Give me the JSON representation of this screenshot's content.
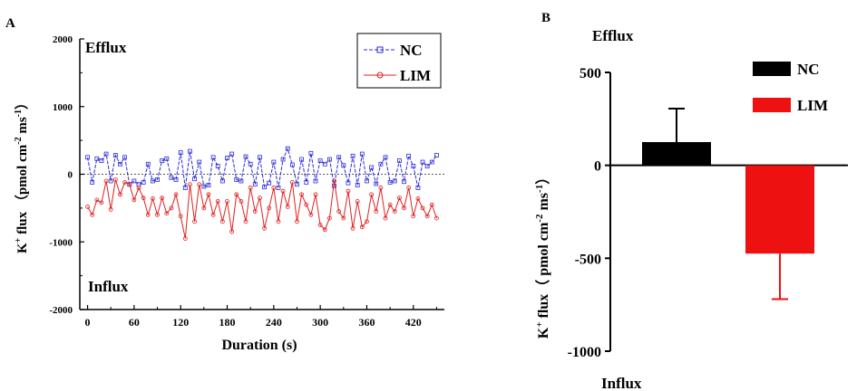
{
  "panels": {
    "A": {
      "letter": "A"
    },
    "B": {
      "letter": "B"
    }
  },
  "chart_data": [
    {
      "type": "line",
      "panel": "A",
      "xlabel": "Duration (s)",
      "ylabel": "K+ flux (pmol cm-2 ms-1)",
      "xlim": [
        -10,
        460
      ],
      "ylim": [
        -2000,
        2000
      ],
      "x_ticks": [
        0,
        60,
        120,
        180,
        240,
        300,
        360,
        420
      ],
      "y_ticks": [
        -2000,
        -1000,
        0,
        1000,
        2000
      ],
      "annotations": {
        "top": "Efflux",
        "bottom": "Influx"
      },
      "reference_line": 0,
      "legend": "top-right",
      "colors": {
        "NC": "#2b2bd9",
        "LIM": "#e02020"
      },
      "x": [
        0,
        6,
        12,
        18,
        24,
        30,
        36,
        42,
        48,
        54,
        60,
        66,
        72,
        78,
        84,
        90,
        96,
        102,
        108,
        114,
        120,
        126,
        132,
        138,
        144,
        150,
        156,
        162,
        168,
        174,
        180,
        186,
        192,
        198,
        204,
        210,
        216,
        222,
        228,
        234,
        240,
        246,
        252,
        258,
        264,
        270,
        276,
        282,
        288,
        294,
        300,
        306,
        312,
        318,
        324,
        330,
        336,
        342,
        348,
        354,
        360,
        366,
        372,
        378,
        384,
        390,
        396,
        402,
        408,
        414,
        420,
        426,
        432,
        438,
        444,
        450
      ],
      "series": [
        {
          "name": "NC",
          "values": [
            250,
            -120,
            230,
            200,
            300,
            -100,
            280,
            150,
            250,
            -150,
            -100,
            -150,
            -120,
            150,
            -100,
            -80,
            200,
            230,
            -50,
            -80,
            320,
            -200,
            340,
            -70,
            180,
            -180,
            -160,
            250,
            120,
            -100,
            240,
            300,
            -80,
            -100,
            260,
            150,
            -150,
            250,
            -190,
            -130,
            180,
            -200,
            220,
            380,
            140,
            -150,
            220,
            -120,
            310,
            -100,
            200,
            150,
            220,
            -170,
            250,
            130,
            -130,
            270,
            -160,
            300,
            -100,
            100,
            -140,
            150,
            250,
            -120,
            -100,
            200,
            -110,
            270,
            120,
            -200,
            180,
            120,
            180,
            280
          ],
          "marker": "square"
        },
        {
          "name": "LIM",
          "values": [
            -480,
            -600,
            -380,
            -420,
            -100,
            -520,
            -80,
            -300,
            -120,
            -150,
            -380,
            -200,
            -350,
            -600,
            -360,
            -600,
            -350,
            -580,
            -500,
            -300,
            -620,
            -950,
            -150,
            -700,
            -150,
            -500,
            -300,
            -600,
            -400,
            -700,
            -400,
            -850,
            -300,
            -400,
            -700,
            -200,
            -550,
            -350,
            -800,
            -500,
            -200,
            -700,
            -250,
            -480,
            -120,
            -700,
            -300,
            -450,
            -600,
            -300,
            -750,
            -820,
            -650,
            -100,
            -550,
            -650,
            -250,
            -800,
            -400,
            -780,
            -700,
            -300,
            -550,
            -200,
            -650,
            -450,
            -550,
            -350,
            -500,
            -200,
            -620,
            -360,
            -500,
            -620,
            -450,
            -650
          ],
          "marker": "circle"
        }
      ]
    },
    {
      "type": "bar",
      "panel": "B",
      "ylabel": "K+ flux ( pmol cm-2 ms-1)",
      "ylim": [
        -1000,
        500
      ],
      "y_ticks": [
        -1000,
        -500,
        0,
        500
      ],
      "annotations": {
        "top": "Efflux",
        "bottom": "Influx"
      },
      "legend": "top-right",
      "series": [
        {
          "name": "NC",
          "value": 125,
          "error": 180,
          "color": "#000000"
        },
        {
          "name": "LIM",
          "value": -475,
          "error": 245,
          "color": "#ee1111"
        }
      ]
    }
  ]
}
